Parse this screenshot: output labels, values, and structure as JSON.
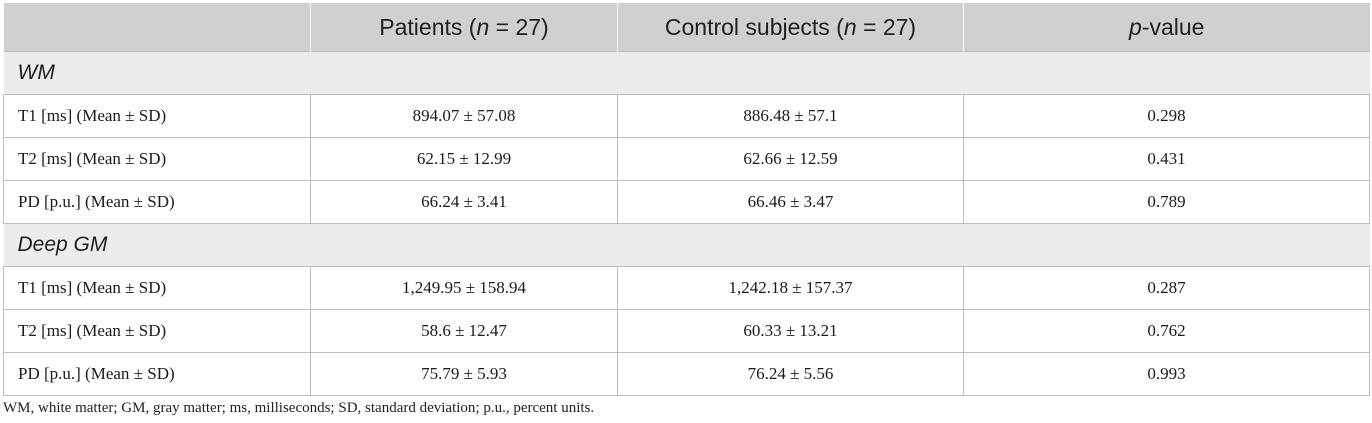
{
  "table": {
    "header": {
      "col0": "",
      "col1_prefix": "Patients (",
      "col1_n": "n",
      "col1_suffix": " = 27)",
      "col2_prefix": "Control subjects (",
      "col2_n": "n",
      "col2_suffix": " = 27)",
      "col3_p": "p",
      "col3_suffix": "-value"
    },
    "sections": [
      {
        "title": "WM",
        "rows": [
          {
            "label": "T1 [ms] (Mean ± SD)",
            "patients": "894.07 ± 57.08",
            "controls": "886.48 ± 57.1",
            "p": "0.298"
          },
          {
            "label": "T2 [ms] (Mean ± SD)",
            "patients": "62.15 ± 12.99",
            "controls": "62.66 ± 12.59",
            "p": "0.431"
          },
          {
            "label": "PD [p.u.] (Mean ± SD)",
            "patients": "66.24 ± 3.41",
            "controls": "66.46 ± 3.47",
            "p": "0.789"
          }
        ]
      },
      {
        "title": "Deep GM",
        "rows": [
          {
            "label": "T1 [ms] (Mean ± SD)",
            "patients": "1,249.95 ± 158.94",
            "controls": "1,242.18 ± 157.37",
            "p": "0.287"
          },
          {
            "label": "T2 [ms] (Mean ± SD)",
            "patients": "58.6 ± 12.47",
            "controls": "60.33 ± 13.21",
            "p": "0.762"
          },
          {
            "label": "PD [p.u.] (Mean ± SD)",
            "patients": "75.79 ± 5.93",
            "controls": "76.24 ± 5.56",
            "p": "0.993"
          }
        ]
      }
    ]
  },
  "footnote": "WM, white matter; GM, gray matter; ms, milliseconds; SD, standard deviation; p.u., percent units."
}
